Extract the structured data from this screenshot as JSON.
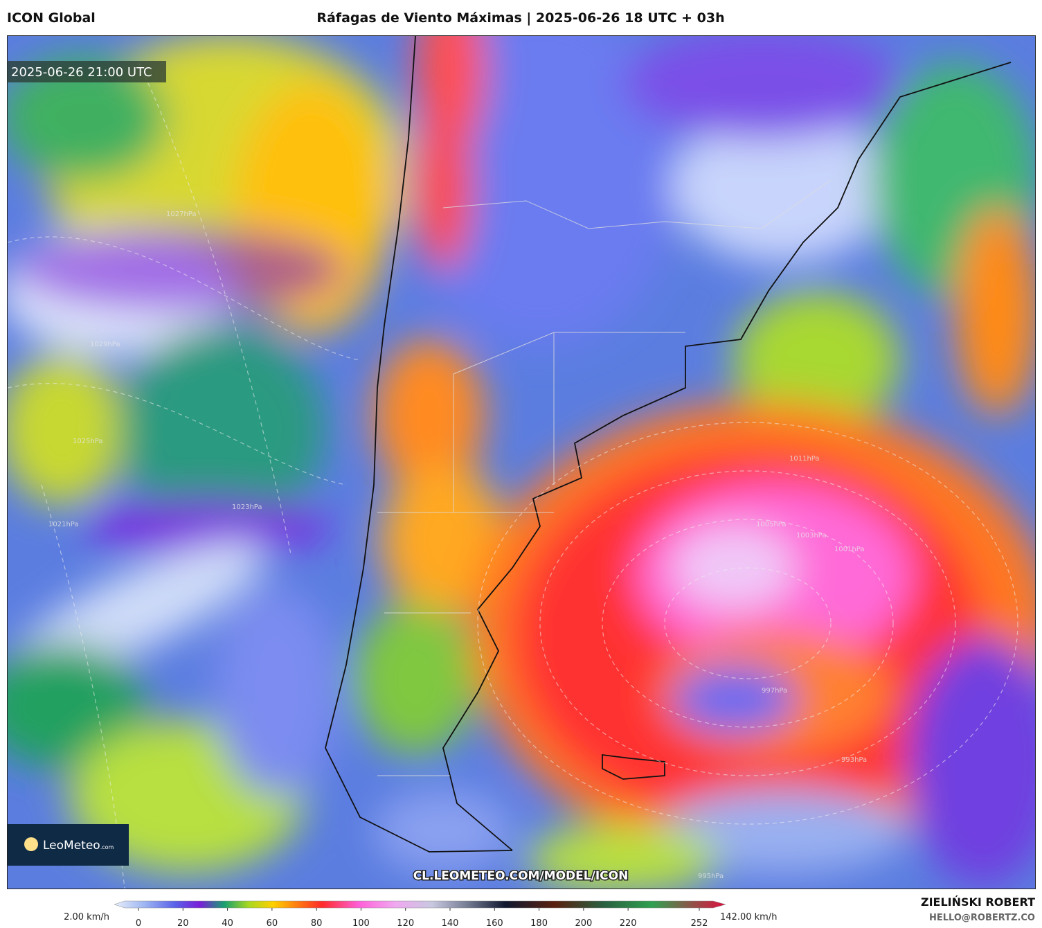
{
  "header": {
    "model": "ICON Global",
    "title": "Ráfagas de Viento Máximas | 2025-06-26 18 UTC + 03h"
  },
  "map": {
    "valid_time": "2025-06-26 21:00 UTC",
    "watermark": "CL.LEOMETEO.COM/MODEL/ICON",
    "logo": {
      "brand_light": "Leo",
      "brand_bold": "Meteo",
      "suffix": ".com"
    },
    "isobar_labels": [
      "1027hPa",
      "1029hPa",
      "1025hPa",
      "1023hPa",
      "1021hPa",
      "1011hPa",
      "1005hPa",
      "1003hPa",
      "1001hPa",
      "997hPa",
      "993hPa",
      "995hPa"
    ]
  },
  "colorbar": {
    "min_label": "2.00 km/h",
    "max_label": "142.00 km/h",
    "ticks": [
      0,
      20,
      40,
      60,
      80,
      100,
      120,
      140,
      160,
      180,
      200,
      220,
      252
    ],
    "range": [
      0,
      252
    ]
  },
  "credits": {
    "author": "ZIELIŃSKI ROBERT",
    "email": "HELLO@ROBERTZ.CO"
  }
}
